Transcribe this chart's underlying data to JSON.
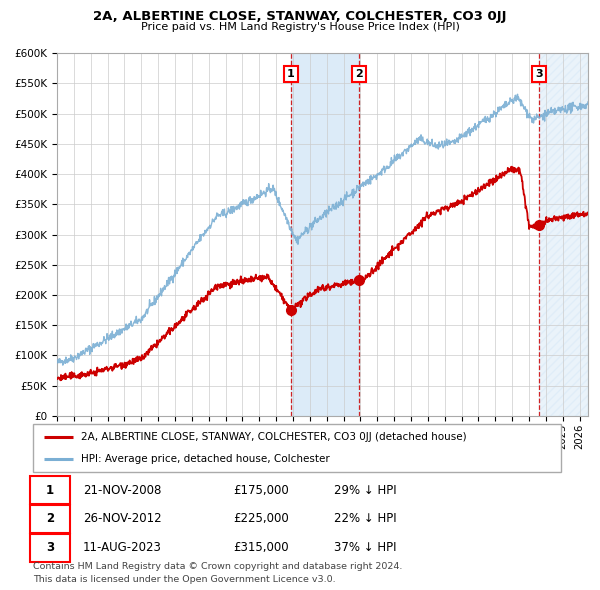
{
  "title": "2A, ALBERTINE CLOSE, STANWAY, COLCHESTER, CO3 0JJ",
  "subtitle": "Price paid vs. HM Land Registry's House Price Index (HPI)",
  "legend_line1": "2A, ALBERTINE CLOSE, STANWAY, COLCHESTER, CO3 0JJ (detached house)",
  "legend_line2": "HPI: Average price, detached house, Colchester",
  "transactions": [
    {
      "num": 1,
      "date": "21-NOV-2008",
      "price": 175000,
      "hpi_pct": "29%",
      "dir": "↓"
    },
    {
      "num": 2,
      "date": "26-NOV-2012",
      "price": 225000,
      "hpi_pct": "22%",
      "dir": "↓"
    },
    {
      "num": 3,
      "date": "11-AUG-2023",
      "price": 315000,
      "hpi_pct": "37%",
      "dir": "↓"
    }
  ],
  "footer1": "Contains HM Land Registry data © Crown copyright and database right 2024.",
  "footer2": "This data is licensed under the Open Government Licence v3.0.",
  "hpi_color": "#7bafd4",
  "price_color": "#cc0000",
  "ylim": [
    0,
    600000
  ],
  "background_color": "#ffffff",
  "grid_color": "#cccccc",
  "chart_bg": "#ffffff",
  "t1_year": 2008.88,
  "t2_year": 2012.9,
  "t3_year": 2023.6,
  "xmin": 1995,
  "xmax": 2026.5
}
